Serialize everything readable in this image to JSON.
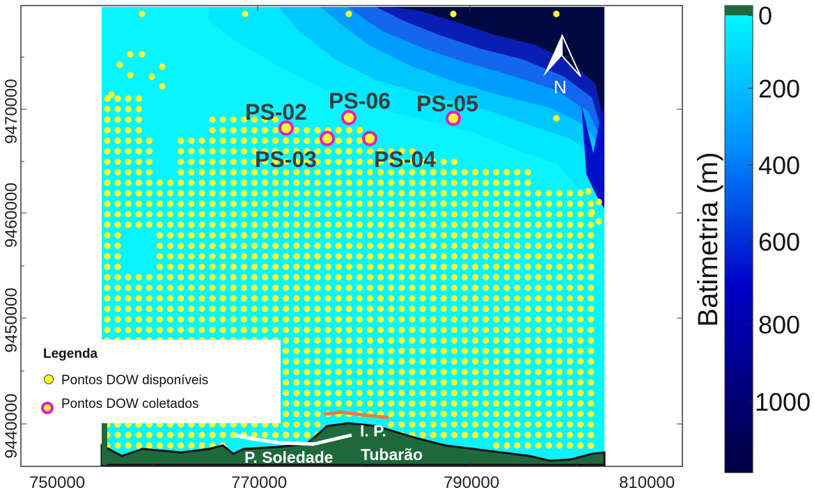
{
  "map": {
    "x_ticks": [
      "750000",
      "770000",
      "790000",
      "810000"
    ],
    "y_ticks": [
      "9440000",
      "9450000",
      "9460000",
      "9470000"
    ],
    "north_label": "N",
    "colorbar": {
      "title": "Batimetria (m)",
      "ticks": [
        "0",
        "200",
        "400",
        "600",
        "800",
        "1000"
      ],
      "colors": [
        "#00ffff",
        "#0090ff",
        "#0000c8",
        "#000040"
      ]
    },
    "stations": [
      {
        "id": "ps02",
        "label": "PS-02"
      },
      {
        "id": "ps03",
        "label": "PS-03"
      },
      {
        "id": "ps04",
        "label": "PS-04"
      },
      {
        "id": "ps05",
        "label": "PS-05"
      },
      {
        "id": "ps06",
        "label": "PS-06"
      }
    ],
    "places": {
      "soledade": "P. Soledade",
      "ip": "I. P.",
      "tubarao": "Tubarão"
    },
    "legend": {
      "title": "Legenda",
      "available": "Pontos DOW disponíveis",
      "collected": "Pontos DOW coletados"
    },
    "colors": {
      "land": "#1e6a3c",
      "shallow_sea": "#00ffff",
      "available_point": "#ffff33",
      "collected_ring": "#e020c0"
    }
  }
}
